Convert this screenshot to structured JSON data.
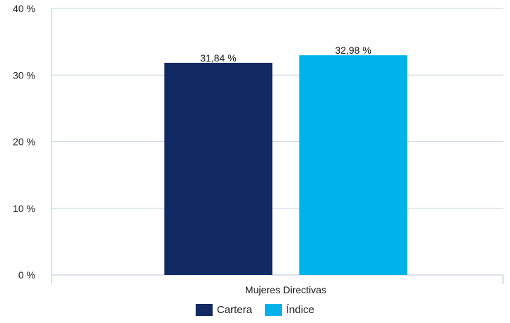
{
  "chart_data": {
    "type": "bar",
    "categories": [
      "Mujeres Directivas"
    ],
    "series": [
      {
        "name": "Cartera",
        "values": [
          31.84
        ],
        "color": "#122a63",
        "label": "31,84 %"
      },
      {
        "name": "Índice",
        "values": [
          32.98
        ],
        "color": "#00b2ea",
        "label": "32,98 %"
      }
    ],
    "ylim": [
      0,
      40
    ],
    "yticks": [
      0,
      10,
      20,
      30,
      40
    ],
    "ytick_labels": [
      "0 %",
      "10 %",
      "20 %",
      "30 %",
      "40 %"
    ],
    "grid": true,
    "legend_position": "bottom",
    "title": "",
    "xlabel": "",
    "ylabel": ""
  }
}
